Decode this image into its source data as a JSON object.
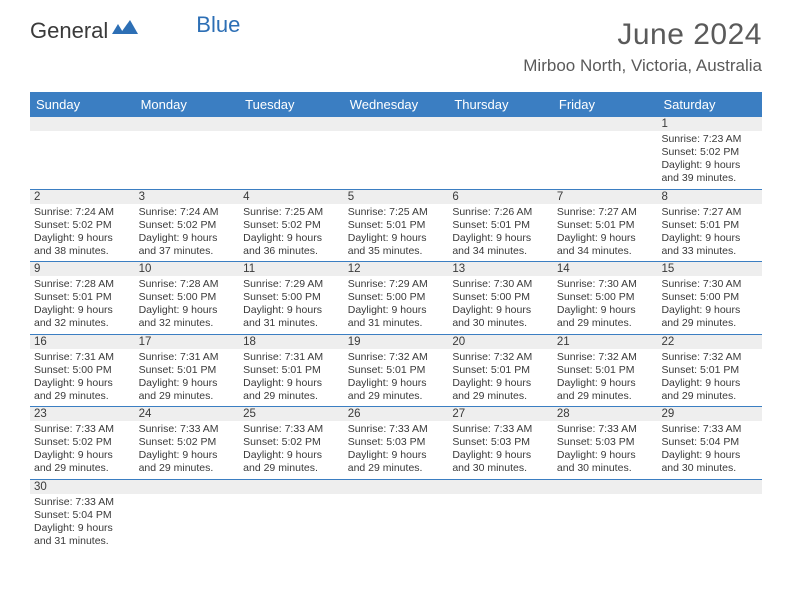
{
  "logo": {
    "text_a": "General",
    "text_b": "Blue"
  },
  "title": "June 2024",
  "location": "Mirboo North, Victoria, Australia",
  "colors": {
    "header_bg": "#3b7ec2",
    "header_text": "#ffffff",
    "daynum_bg": "#eeeeee",
    "border": "#3b7ec2",
    "text": "#3a3a3a",
    "logo_gray": "#3a3a3a",
    "logo_blue": "#2d6fb5"
  },
  "weekdays": [
    "Sunday",
    "Monday",
    "Tuesday",
    "Wednesday",
    "Thursday",
    "Friday",
    "Saturday"
  ],
  "weeks": [
    [
      null,
      null,
      null,
      null,
      null,
      null,
      {
        "n": "1",
        "sunrise": "7:23 AM",
        "sunset": "5:02 PM",
        "daylight": "9 hours and 39 minutes."
      }
    ],
    [
      {
        "n": "2",
        "sunrise": "7:24 AM",
        "sunset": "5:02 PM",
        "daylight": "9 hours and 38 minutes."
      },
      {
        "n": "3",
        "sunrise": "7:24 AM",
        "sunset": "5:02 PM",
        "daylight": "9 hours and 37 minutes."
      },
      {
        "n": "4",
        "sunrise": "7:25 AM",
        "sunset": "5:02 PM",
        "daylight": "9 hours and 36 minutes."
      },
      {
        "n": "5",
        "sunrise": "7:25 AM",
        "sunset": "5:01 PM",
        "daylight": "9 hours and 35 minutes."
      },
      {
        "n": "6",
        "sunrise": "7:26 AM",
        "sunset": "5:01 PM",
        "daylight": "9 hours and 34 minutes."
      },
      {
        "n": "7",
        "sunrise": "7:27 AM",
        "sunset": "5:01 PM",
        "daylight": "9 hours and 34 minutes."
      },
      {
        "n": "8",
        "sunrise": "7:27 AM",
        "sunset": "5:01 PM",
        "daylight": "9 hours and 33 minutes."
      }
    ],
    [
      {
        "n": "9",
        "sunrise": "7:28 AM",
        "sunset": "5:01 PM",
        "daylight": "9 hours and 32 minutes."
      },
      {
        "n": "10",
        "sunrise": "7:28 AM",
        "sunset": "5:00 PM",
        "daylight": "9 hours and 32 minutes."
      },
      {
        "n": "11",
        "sunrise": "7:29 AM",
        "sunset": "5:00 PM",
        "daylight": "9 hours and 31 minutes."
      },
      {
        "n": "12",
        "sunrise": "7:29 AM",
        "sunset": "5:00 PM",
        "daylight": "9 hours and 31 minutes."
      },
      {
        "n": "13",
        "sunrise": "7:30 AM",
        "sunset": "5:00 PM",
        "daylight": "9 hours and 30 minutes."
      },
      {
        "n": "14",
        "sunrise": "7:30 AM",
        "sunset": "5:00 PM",
        "daylight": "9 hours and 29 minutes."
      },
      {
        "n": "15",
        "sunrise": "7:30 AM",
        "sunset": "5:00 PM",
        "daylight": "9 hours and 29 minutes."
      }
    ],
    [
      {
        "n": "16",
        "sunrise": "7:31 AM",
        "sunset": "5:00 PM",
        "daylight": "9 hours and 29 minutes."
      },
      {
        "n": "17",
        "sunrise": "7:31 AM",
        "sunset": "5:01 PM",
        "daylight": "9 hours and 29 minutes."
      },
      {
        "n": "18",
        "sunrise": "7:31 AM",
        "sunset": "5:01 PM",
        "daylight": "9 hours and 29 minutes."
      },
      {
        "n": "19",
        "sunrise": "7:32 AM",
        "sunset": "5:01 PM",
        "daylight": "9 hours and 29 minutes."
      },
      {
        "n": "20",
        "sunrise": "7:32 AM",
        "sunset": "5:01 PM",
        "daylight": "9 hours and 29 minutes."
      },
      {
        "n": "21",
        "sunrise": "7:32 AM",
        "sunset": "5:01 PM",
        "daylight": "9 hours and 29 minutes."
      },
      {
        "n": "22",
        "sunrise": "7:32 AM",
        "sunset": "5:01 PM",
        "daylight": "9 hours and 29 minutes."
      }
    ],
    [
      {
        "n": "23",
        "sunrise": "7:33 AM",
        "sunset": "5:02 PM",
        "daylight": "9 hours and 29 minutes."
      },
      {
        "n": "24",
        "sunrise": "7:33 AM",
        "sunset": "5:02 PM",
        "daylight": "9 hours and 29 minutes."
      },
      {
        "n": "25",
        "sunrise": "7:33 AM",
        "sunset": "5:02 PM",
        "daylight": "9 hours and 29 minutes."
      },
      {
        "n": "26",
        "sunrise": "7:33 AM",
        "sunset": "5:03 PM",
        "daylight": "9 hours and 29 minutes."
      },
      {
        "n": "27",
        "sunrise": "7:33 AM",
        "sunset": "5:03 PM",
        "daylight": "9 hours and 30 minutes."
      },
      {
        "n": "28",
        "sunrise": "7:33 AM",
        "sunset": "5:03 PM",
        "daylight": "9 hours and 30 minutes."
      },
      {
        "n": "29",
        "sunrise": "7:33 AM",
        "sunset": "5:04 PM",
        "daylight": "9 hours and 30 minutes."
      }
    ],
    [
      {
        "n": "30",
        "sunrise": "7:33 AM",
        "sunset": "5:04 PM",
        "daylight": "9 hours and 31 minutes."
      },
      null,
      null,
      null,
      null,
      null,
      null
    ]
  ],
  "labels": {
    "sunrise": "Sunrise:",
    "sunset": "Sunset:",
    "daylight": "Daylight:"
  }
}
